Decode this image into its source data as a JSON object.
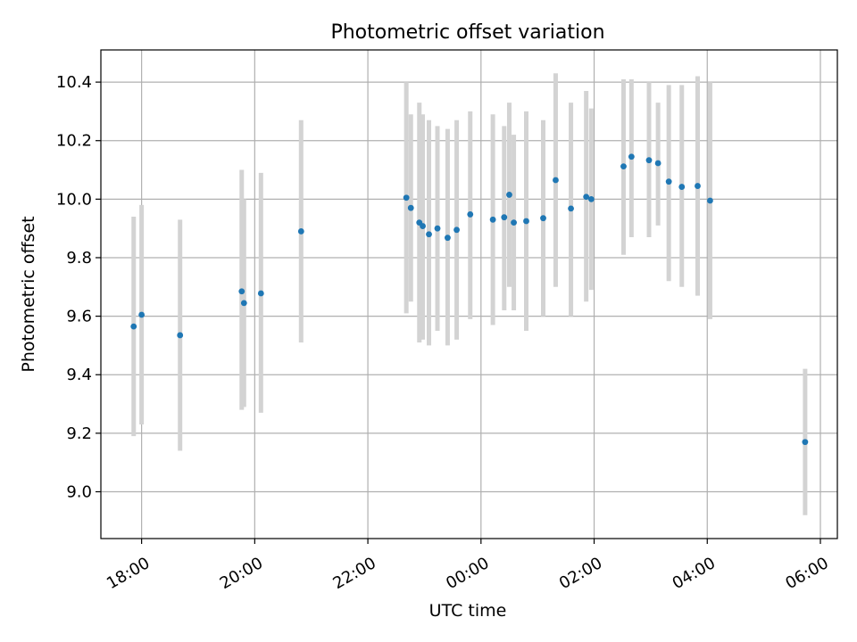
{
  "chart_data": {
    "type": "scatter",
    "title": "Photometric offset variation",
    "xlabel": "UTC time",
    "ylabel": "Photometric offset",
    "x_unit": "hours since 18:00 UTC",
    "xlim": [
      -0.72,
      12.3
    ],
    "ylim": [
      8.84,
      10.51
    ],
    "grid": true,
    "x_ticks": [
      {
        "value": 0,
        "label": "18:00"
      },
      {
        "value": 2,
        "label": "20:00"
      },
      {
        "value": 4,
        "label": "22:00"
      },
      {
        "value": 6,
        "label": "00:00"
      },
      {
        "value": 8,
        "label": "02:00"
      },
      {
        "value": 10,
        "label": "04:00"
      },
      {
        "value": 12,
        "label": "06:00"
      }
    ],
    "y_ticks": [
      {
        "value": 9.0,
        "label": "9.0"
      },
      {
        "value": 9.2,
        "label": "9.2"
      },
      {
        "value": 9.4,
        "label": "9.4"
      },
      {
        "value": 9.6,
        "label": "9.6"
      },
      {
        "value": 9.8,
        "label": "9.8"
      },
      {
        "value": 10.0,
        "label": "10.0"
      },
      {
        "value": 10.2,
        "label": "10.2"
      },
      {
        "value": 10.4,
        "label": "10.4"
      }
    ],
    "colors": {
      "point": "#1f77b4",
      "errorbar": "#d3d3d3",
      "grid": "#b0b0b0"
    },
    "points": [
      {
        "x": -0.14,
        "y": 9.565,
        "low": 9.19,
        "high": 9.94
      },
      {
        "x": 0.0,
        "y": 9.605,
        "low": 9.23,
        "high": 9.98
      },
      {
        "x": 0.68,
        "y": 9.535,
        "low": 9.14,
        "high": 9.93
      },
      {
        "x": 1.77,
        "y": 9.685,
        "low": 9.28,
        "high": 10.1
      },
      {
        "x": 1.81,
        "y": 9.645,
        "low": 9.29,
        "high": 10.0
      },
      {
        "x": 2.11,
        "y": 9.678,
        "low": 9.27,
        "high": 10.09
      },
      {
        "x": 2.82,
        "y": 9.89,
        "low": 9.51,
        "high": 10.27
      },
      {
        "x": 4.68,
        "y": 10.005,
        "low": 9.61,
        "high": 10.4
      },
      {
        "x": 4.76,
        "y": 9.97,
        "low": 9.65,
        "high": 10.29
      },
      {
        "x": 4.91,
        "y": 9.92,
        "low": 9.51,
        "high": 10.33
      },
      {
        "x": 4.97,
        "y": 9.908,
        "low": 9.52,
        "high": 10.29
      },
      {
        "x": 5.08,
        "y": 9.88,
        "low": 9.5,
        "high": 10.27
      },
      {
        "x": 5.23,
        "y": 9.9,
        "low": 9.55,
        "high": 10.25
      },
      {
        "x": 5.41,
        "y": 9.868,
        "low": 9.5,
        "high": 10.24
      },
      {
        "x": 5.57,
        "y": 9.895,
        "low": 9.52,
        "high": 10.27
      },
      {
        "x": 5.81,
        "y": 9.948,
        "low": 9.59,
        "high": 10.3
      },
      {
        "x": 6.21,
        "y": 9.93,
        "low": 9.57,
        "high": 10.29
      },
      {
        "x": 6.41,
        "y": 9.938,
        "low": 9.62,
        "high": 10.25
      },
      {
        "x": 6.5,
        "y": 10.015,
        "low": 9.7,
        "high": 10.33
      },
      {
        "x": 6.58,
        "y": 9.92,
        "low": 9.62,
        "high": 10.22
      },
      {
        "x": 6.8,
        "y": 9.925,
        "low": 9.55,
        "high": 10.3
      },
      {
        "x": 7.1,
        "y": 9.935,
        "low": 9.6,
        "high": 10.27
      },
      {
        "x": 7.32,
        "y": 10.065,
        "low": 9.7,
        "high": 10.43
      },
      {
        "x": 7.59,
        "y": 9.968,
        "low": 9.6,
        "high": 10.33
      },
      {
        "x": 7.86,
        "y": 10.008,
        "low": 9.65,
        "high": 10.37
      },
      {
        "x": 7.95,
        "y": 10.0,
        "low": 9.69,
        "high": 10.31
      },
      {
        "x": 8.52,
        "y": 10.112,
        "low": 9.81,
        "high": 10.41
      },
      {
        "x": 8.66,
        "y": 10.145,
        "low": 9.87,
        "high": 10.41
      },
      {
        "x": 8.97,
        "y": 10.133,
        "low": 9.87,
        "high": 10.4
      },
      {
        "x": 9.13,
        "y": 10.123,
        "low": 9.91,
        "high": 10.33
      },
      {
        "x": 9.32,
        "y": 10.06,
        "low": 9.72,
        "high": 10.39
      },
      {
        "x": 9.55,
        "y": 10.042,
        "low": 9.7,
        "high": 10.39
      },
      {
        "x": 9.83,
        "y": 10.045,
        "low": 9.67,
        "high": 10.42
      },
      {
        "x": 10.05,
        "y": 9.995,
        "low": 9.59,
        "high": 10.4
      },
      {
        "x": 11.73,
        "y": 9.17,
        "low": 8.92,
        "high": 9.42
      }
    ]
  }
}
